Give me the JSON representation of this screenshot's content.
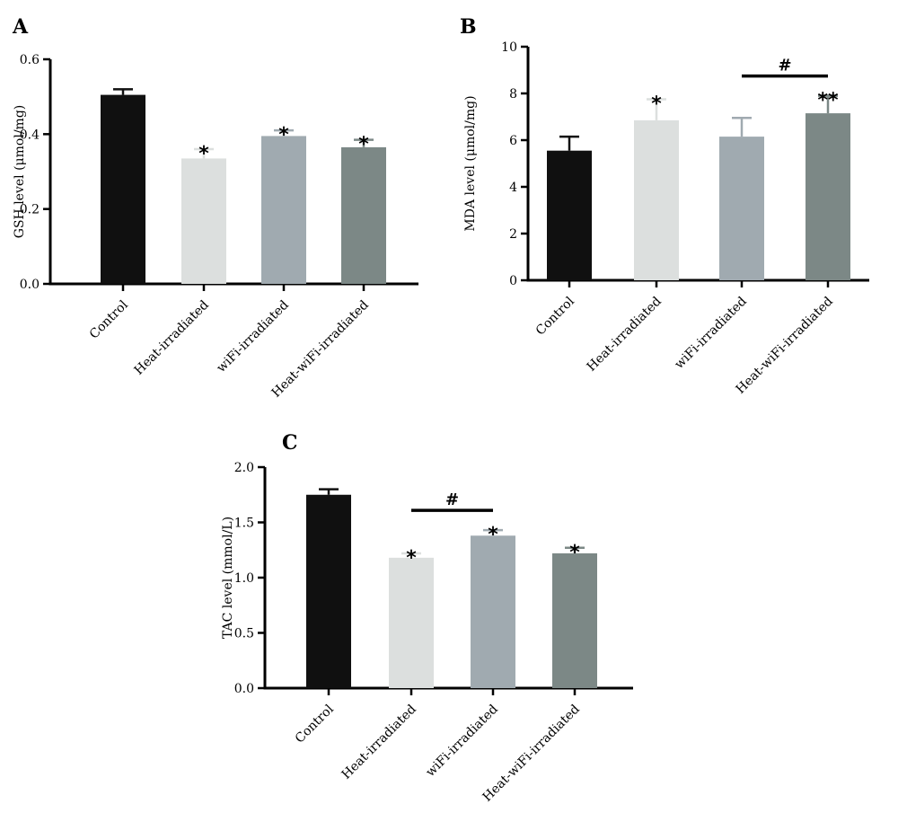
{
  "chart_data": [
    {
      "type": "bar",
      "panel": "A",
      "title": "",
      "xlabel": "",
      "ylabel": "GSH level (μmol/mg)",
      "ylim": [
        0,
        0.6
      ],
      "yticks": [
        "0.0",
        "0.2",
        "0.4",
        "0.6"
      ],
      "categories": [
        "Control",
        "Heat-irradiated",
        "wiFi-irradiated",
        "Heat-wiFi-irradiated"
      ],
      "values": [
        0.505,
        0.335,
        0.395,
        0.365
      ],
      "errors": [
        0.015,
        0.025,
        0.015,
        0.02
      ],
      "bar_colors": [
        "#101010",
        "#dcdfde",
        "#a0aab0",
        "#7c8886"
      ],
      "significance": [
        "",
        "*",
        "*",
        "*"
      ],
      "brackets": []
    },
    {
      "type": "bar",
      "panel": "B",
      "title": "",
      "xlabel": "",
      "ylabel": "MDA level (μmol/mg)",
      "ylim": [
        0,
        10
      ],
      "yticks": [
        "0",
        "2",
        "4",
        "6",
        "8",
        "10"
      ],
      "categories": [
        "Control",
        "Heat-irradiated",
        "wiFi-irradiated",
        "Heat-wiFi-irradiated"
      ],
      "values": [
        5.55,
        6.85,
        6.15,
        7.15
      ],
      "errors": [
        0.6,
        0.9,
        0.8,
        0.75
      ],
      "bar_colors": [
        "#101010",
        "#dcdfde",
        "#a0aab0",
        "#7c8886"
      ],
      "significance": [
        "",
        "*",
        "",
        "**"
      ],
      "brackets": [
        {
          "from": 2,
          "to": 3,
          "label": "#"
        }
      ]
    },
    {
      "type": "bar",
      "panel": "C",
      "title": "",
      "xlabel": "",
      "ylabel": "TAC level (mmol/L)",
      "ylim": [
        0,
        2.0
      ],
      "yticks": [
        "0.0",
        "0.5",
        "1.0",
        "1.5",
        "2.0"
      ],
      "categories": [
        "Control",
        "Heat-irradiated",
        "wiFi-irradiated",
        "Heat-wiFi-irradiated"
      ],
      "values": [
        1.75,
        1.18,
        1.38,
        1.22
      ],
      "errors": [
        0.05,
        0.04,
        0.05,
        0.05
      ],
      "bar_colors": [
        "#101010",
        "#dcdfde",
        "#a0aab0",
        "#7c8886"
      ],
      "significance": [
        "",
        "*",
        "*",
        "*"
      ],
      "brackets": [
        {
          "from": 1,
          "to": 2,
          "label": "#"
        }
      ]
    }
  ]
}
